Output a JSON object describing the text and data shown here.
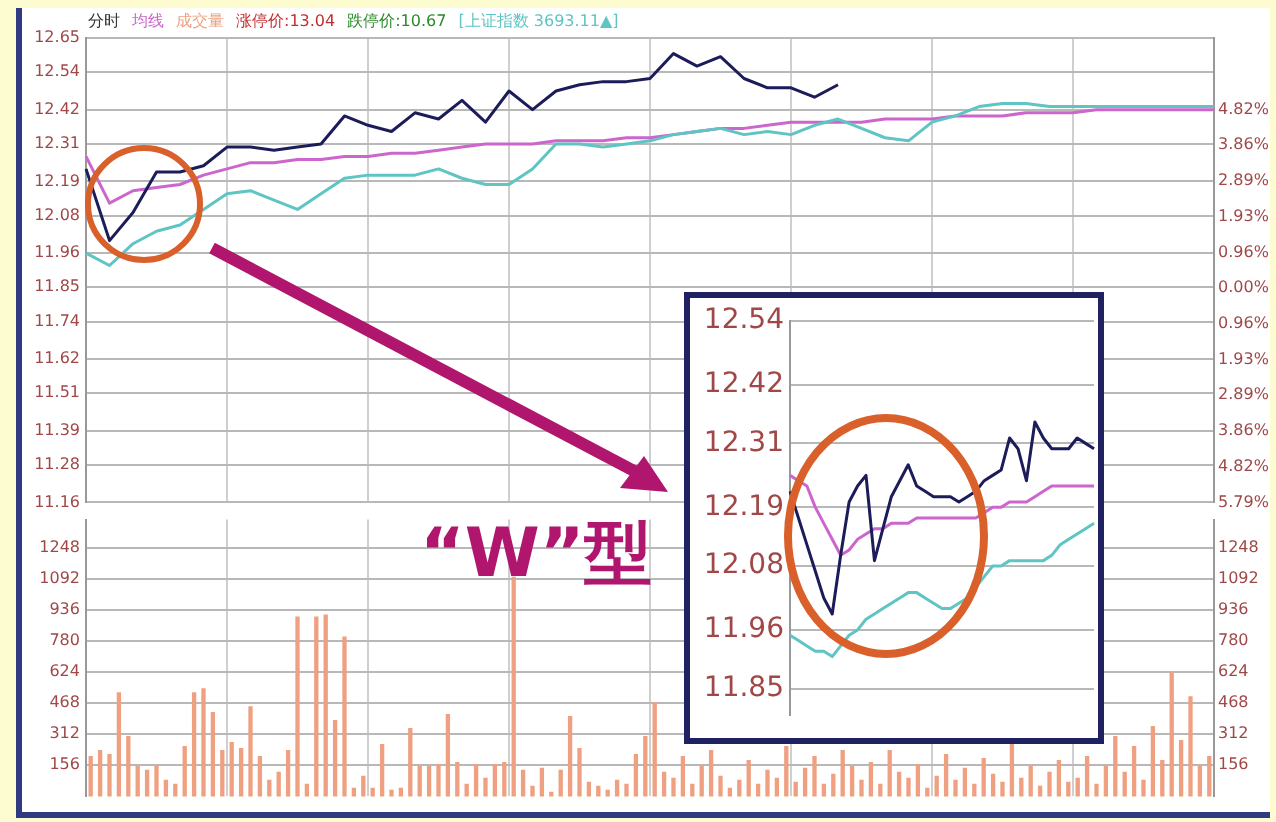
{
  "chart_data": [
    {
      "type": "line",
      "annotations": [
        "分时",
        "涨停价:13.04",
        "跌停价:10.67",
        "“W”型"
      ],
      "grid": true,
      "tick_labels": "y",
      "categories": [
        null,
        null,
        null,
        null,
        null,
        null,
        null,
        null,
        null,
        null,
        null,
        null,
        null,
        null,
        null,
        null,
        null,
        null,
        null,
        null,
        null,
        null,
        null,
        null,
        null,
        null,
        null,
        null,
        null,
        null,
        null,
        null,
        null,
        null,
        null,
        null,
        null,
        null,
        null,
        null,
        null,
        null,
        null,
        null,
        null,
        null,
        null,
        null,
        null
      ],
      "ylim": [
        11.16,
        12.65
      ],
      "yticks": [
        11.16,
        11.28,
        11.39,
        11.51,
        11.62,
        11.74,
        11.85,
        11.96,
        12.08,
        12.19,
        12.31,
        12.42,
        12.54,
        12.65
      ],
      "y2lim": [
        -5.79,
        6.75
      ],
      "y2ticks": [
        {
          "value": -5.79,
          "label": "5.79%"
        },
        {
          "value": -4.82,
          "label": "4.82%"
        },
        {
          "value": -3.86,
          "label": "3.86%"
        },
        {
          "value": -2.89,
          "label": "2.89%"
        },
        {
          "value": -1.93,
          "label": "1.93%"
        },
        {
          "value": -0.96,
          "label": "0.96%"
        },
        {
          "value": 0,
          "label": "0.00%"
        },
        {
          "value": 0.96,
          "label": "0.96%"
        },
        {
          "value": 1.93,
          "label": "1.93%"
        },
        {
          "value": 2.89,
          "label": "2.89%"
        },
        {
          "value": 3.86,
          "label": "3.86%"
        },
        {
          "value": 4.82,
          "label": "4.82%"
        }
      ],
      "series": [
        {
          "color": "#1c1c5a",
          "values": [
            12.23,
            12.0,
            12.09,
            12.22,
            12.22,
            12.24,
            12.3,
            12.3,
            12.29,
            12.3,
            12.31,
            12.4,
            12.37,
            12.35,
            12.41,
            12.39,
            12.45,
            12.38,
            12.48,
            12.42,
            12.48,
            12.5,
            12.51,
            12.51,
            12.52,
            12.6,
            12.56,
            12.59,
            12.52,
            12.49,
            12.49,
            12.46,
            12.5,
            null,
            null,
            null,
            null,
            null,
            null,
            null,
            null,
            null,
            null,
            null,
            null,
            null,
            null,
            null,
            null
          ]
        },
        {
          "name": "均线",
          "color": "#cc66cc",
          "values": [
            12.27,
            12.12,
            12.16,
            12.17,
            12.18,
            12.21,
            12.23,
            12.25,
            12.25,
            12.26,
            12.26,
            12.27,
            12.27,
            12.28,
            12.28,
            12.29,
            12.3,
            12.31,
            12.31,
            12.31,
            12.32,
            12.32,
            12.32,
            12.33,
            12.33,
            12.34,
            12.35,
            12.36,
            12.36,
            12.37,
            12.38,
            12.38,
            12.38,
            12.38,
            12.39,
            12.39,
            12.39,
            12.4,
            12.4,
            12.4,
            12.41,
            12.41,
            12.41,
            12.42,
            12.42,
            12.42,
            12.42,
            12.42,
            12.42
          ]
        },
        {
          "name": "[上证指数 3693.11▲]",
          "color": "#5fc4c4",
          "values": [
            11.96,
            11.92,
            11.99,
            12.03,
            12.05,
            12.1,
            12.15,
            12.16,
            12.13,
            12.1,
            12.15,
            12.2,
            12.21,
            12.21,
            12.21,
            12.23,
            12.2,
            12.18,
            12.18,
            12.23,
            12.31,
            12.31,
            12.3,
            12.31,
            12.32,
            12.34,
            12.35,
            12.36,
            12.34,
            12.35,
            12.34,
            12.37,
            12.39,
            12.36,
            12.33,
            12.32,
            12.38,
            12.4,
            12.43,
            12.44,
            12.44,
            12.43,
            12.43,
            12.43,
            12.43,
            12.43,
            12.43,
            12.43,
            12.43
          ]
        }
      ]
    },
    {
      "type": "bar",
      "grid": true,
      "tick_labels": "y",
      "categories": [
        null,
        null,
        null,
        null,
        null,
        null,
        null,
        null,
        null,
        null,
        null,
        null,
        null,
        null,
        null,
        null,
        null,
        null,
        null,
        null,
        null,
        null,
        null,
        null,
        null,
        null,
        null,
        null,
        null,
        null,
        null,
        null,
        null,
        null,
        null,
        null,
        null,
        null,
        null,
        null,
        null,
        null,
        null,
        null,
        null,
        null,
        null,
        null,
        null,
        null,
        null,
        null,
        null,
        null,
        null,
        null,
        null,
        null,
        null,
        null,
        null,
        null,
        null,
        null,
        null,
        null,
        null,
        null,
        null,
        null,
        null,
        null,
        null,
        null,
        null,
        null,
        null,
        null,
        null,
        null,
        null,
        null,
        null,
        null,
        null,
        null,
        null,
        null,
        null,
        null,
        null,
        null,
        null,
        null,
        null,
        null,
        null,
        null,
        null,
        null,
        null,
        null,
        null,
        null,
        null,
        null,
        null,
        null,
        null,
        null,
        null,
        null,
        null,
        null,
        null,
        null,
        null,
        null,
        null,
        null
      ],
      "ylim": [
        0,
        1390
      ],
      "yticks": [
        156,
        312,
        468,
        624,
        780,
        936,
        1092,
        1248
      ],
      "y2lim": [
        0,
        1390
      ],
      "y2ticks": [
        156,
        312,
        468,
        624,
        780,
        936,
        1092,
        1248
      ],
      "series": [
        {
          "name": "成交量",
          "color": "#eea080",
          "values": [
            200,
            230,
            210,
            520,
            300,
            150,
            130,
            150,
            80,
            60,
            250,
            520,
            540,
            420,
            230,
            270,
            240,
            450,
            200,
            80,
            120,
            230,
            900,
            60,
            900,
            910,
            380,
            800,
            40,
            100,
            40,
            260,
            30,
            40,
            340,
            150,
            150,
            160,
            410,
            170,
            60,
            160,
            90,
            160,
            170,
            1100,
            130,
            50,
            140,
            20,
            130,
            400,
            240,
            70,
            50,
            30,
            80,
            60,
            210,
            300,
            470,
            120,
            90,
            200,
            60,
            150,
            230,
            100,
            40,
            80,
            180,
            60,
            130,
            90,
            250,
            70,
            140,
            200,
            60,
            110,
            230,
            150,
            80,
            170,
            60,
            230,
            120,
            90,
            160,
            40,
            100,
            210,
            80,
            140,
            60,
            190,
            110,
            70,
            260,
            90,
            150,
            50,
            120,
            180,
            70,
            90,
            200,
            60,
            150,
            300,
            120,
            250,
            80,
            350,
            180,
            620,
            280,
            500,
            150,
            200
          ]
        }
      ]
    },
    {
      "type": "line",
      "grid": "y",
      "tick_labels": "y",
      "categories": [
        null,
        null,
        null,
        null,
        null,
        null,
        null,
        null,
        null,
        null,
        null,
        null,
        null,
        null,
        null,
        null,
        null,
        null,
        null,
        null,
        null,
        null,
        null,
        null,
        null,
        null,
        null,
        null,
        null,
        null,
        null,
        null,
        null,
        null,
        null,
        null,
        null
      ],
      "ylim": [
        11.8,
        12.54
      ],
      "yticks": [
        11.85,
        11.96,
        12.08,
        12.19,
        12.31,
        12.42,
        12.54
      ],
      "series": [
        {
          "color": "#1c1c5a",
          "values": [
            12.22,
            12.17,
            12.12,
            12.07,
            12.02,
            11.99,
            12.1,
            12.2,
            12.23,
            12.25,
            12.09,
            12.15,
            12.21,
            12.24,
            12.27,
            12.23,
            12.22,
            12.21,
            12.21,
            12.21,
            12.2,
            12.21,
            12.22,
            12.24,
            12.25,
            12.26,
            12.32,
            12.3,
            12.24,
            12.35,
            12.32,
            12.3,
            12.3,
            12.3,
            12.32,
            12.31,
            12.3
          ]
        },
        {
          "color": "#cc66cc",
          "values": [
            12.25,
            12.24,
            12.23,
            12.19,
            12.16,
            12.13,
            12.1,
            12.11,
            12.13,
            12.14,
            12.15,
            12.15,
            12.16,
            12.16,
            12.16,
            12.17,
            12.17,
            12.17,
            12.17,
            12.17,
            12.17,
            12.17,
            12.17,
            12.18,
            12.19,
            12.19,
            12.2,
            12.2,
            12.2,
            12.21,
            12.22,
            12.23,
            12.23,
            12.23,
            12.23,
            12.23,
            12.23
          ]
        },
        {
          "color": "#5fc4c4",
          "values": [
            11.95,
            11.94,
            11.93,
            11.92,
            11.92,
            11.91,
            11.93,
            11.95,
            11.96,
            11.98,
            11.99,
            12.0,
            12.01,
            12.02,
            12.03,
            12.03,
            12.02,
            12.01,
            12.0,
            12.0,
            12.01,
            12.02,
            12.04,
            12.06,
            12.08,
            12.08,
            12.09,
            12.09,
            12.09,
            12.09,
            12.09,
            12.1,
            12.12,
            12.13,
            12.14,
            12.15,
            12.16
          ]
        }
      ]
    }
  ]
}
